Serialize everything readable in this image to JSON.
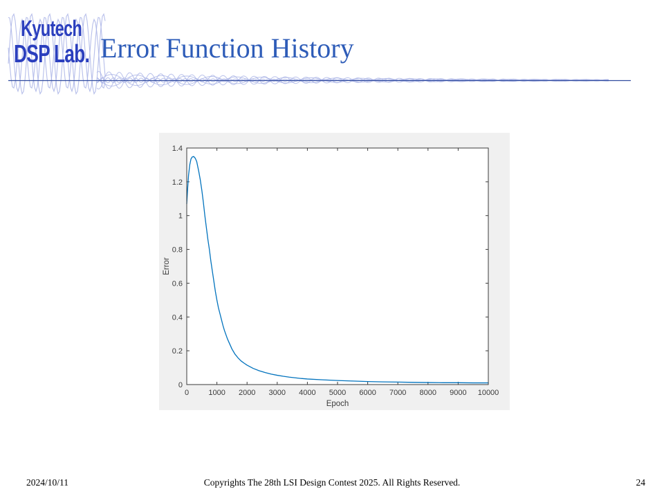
{
  "slide": {
    "logo": {
      "line1": "Kyutech",
      "line2": "DSP Lab."
    },
    "title": "Error Function History",
    "footer": {
      "date": "2024/10/11",
      "copyright": "Copyrights The 28th LSI Design Contest 2025.  All Rights Reserved.",
      "page": "24"
    }
  },
  "colors": {
    "title_blue": "#2E5CB8",
    "logo_blue": "#2B3FBE",
    "rule_navy": "#2F4A9E",
    "wave_lavender": "#A9B3E6",
    "figure_gray": "#f0f0f0",
    "plot_white": "#ffffff",
    "axis_dark": "#3a3a3a",
    "curve_blue": "#0072BD"
  },
  "chart_data": {
    "type": "line",
    "title": "",
    "xlabel": "Epoch",
    "ylabel": "Error",
    "xlim": [
      0,
      10000
    ],
    "ylim": [
      0,
      1.4
    ],
    "grid": false,
    "legend": "none",
    "xticks": [
      0,
      1000,
      2000,
      3000,
      4000,
      5000,
      6000,
      7000,
      8000,
      9000,
      10000
    ],
    "xtick_labels": [
      "0",
      "1000",
      "2000",
      "3000",
      "4000",
      "5000",
      "6000",
      "7000",
      "8000",
      "9000",
      "10000"
    ],
    "yticks": [
      0,
      0.2,
      0.4,
      0.6,
      0.8,
      1.0,
      1.2,
      1.4
    ],
    "ytick_labels": [
      "0",
      "0.2",
      "0.4",
      "0.6",
      "0.8",
      "1",
      "1.2",
      "1.4"
    ],
    "series": [
      {
        "name": "Error",
        "x": [
          0,
          30,
          60,
          100,
          140,
          180,
          230,
          280,
          330,
          400,
          450,
          500,
          550,
          600,
          650,
          700,
          750,
          800,
          850,
          900,
          950,
          1000,
          1050,
          1100,
          1150,
          1200,
          1250,
          1300,
          1350,
          1400,
          1450,
          1500,
          1550,
          1600,
          1700,
          1800,
          1900,
          2000,
          2200,
          2400,
          2600,
          2800,
          3000,
          3200,
          3400,
          3600,
          3800,
          4000,
          4500,
          5000,
          5500,
          6000,
          6500,
          7000,
          7500,
          8000,
          8500,
          9000,
          9500,
          10000
        ],
        "y": [
          1.07,
          1.16,
          1.24,
          1.3,
          1.335,
          1.347,
          1.35,
          1.34,
          1.32,
          1.26,
          1.21,
          1.15,
          1.08,
          1.0,
          0.93,
          0.86,
          0.8,
          0.73,
          0.67,
          0.61,
          0.55,
          0.5,
          0.455,
          0.42,
          0.385,
          0.35,
          0.32,
          0.295,
          0.27,
          0.25,
          0.23,
          0.21,
          0.195,
          0.18,
          0.158,
          0.14,
          0.127,
          0.115,
          0.096,
          0.082,
          0.071,
          0.062,
          0.055,
          0.049,
          0.044,
          0.04,
          0.036,
          0.033,
          0.028,
          0.024,
          0.021,
          0.018,
          0.016,
          0.015,
          0.013,
          0.012,
          0.011,
          0.011,
          0.01,
          0.01
        ]
      }
    ]
  }
}
